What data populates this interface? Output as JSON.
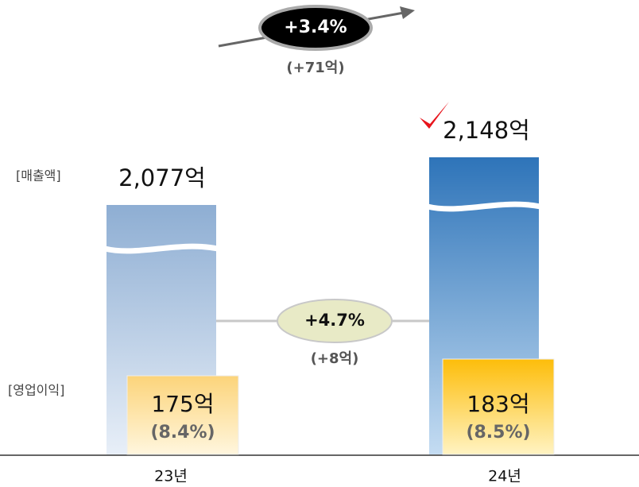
{
  "chart_data": {
    "type": "bar",
    "categories": [
      "23년",
      "24년"
    ],
    "series": [
      {
        "name": "[매출액]",
        "color": "#2e74b9",
        "values": [
          2077,
          2148
        ],
        "value_labels": [
          "2,077억",
          "2,148억"
        ]
      },
      {
        "name": "[영업이익]",
        "color": "#fdbf0e",
        "values": [
          175,
          183
        ],
        "value_labels": [
          "175억",
          "183억"
        ],
        "margin_labels": [
          "(8.4%)",
          "(8.5%)"
        ]
      }
    ],
    "annotations": [
      {
        "text": "+3.4%",
        "sub": "(+71억)"
      },
      {
        "text": "+4.7%",
        "sub": "(+8억)"
      }
    ]
  }
}
